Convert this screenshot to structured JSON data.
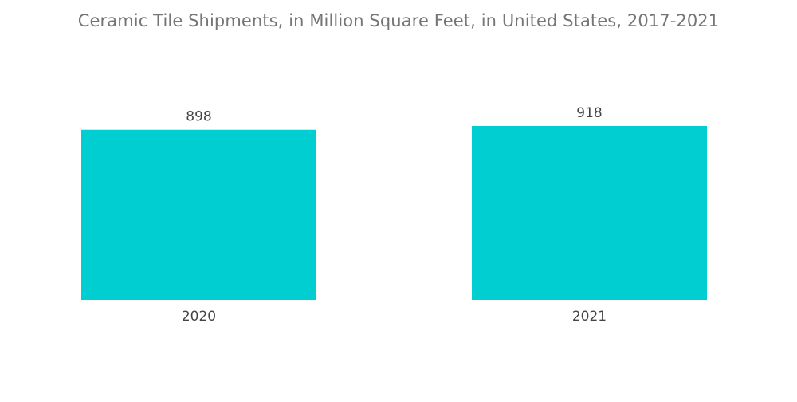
{
  "chart_data": {
    "type": "bar",
    "title": "Ceramic Tile Shipments, in Million Square Feet, in United States, 2017-2021",
    "categories": [
      "2020",
      "2021"
    ],
    "values": [
      898,
      918
    ],
    "data_labels": [
      "898",
      "918"
    ],
    "xlabel": "",
    "ylabel": "",
    "ylim": [
      0,
      918
    ],
    "grid": false,
    "legend": "none",
    "bar_color": "#00CED1"
  }
}
